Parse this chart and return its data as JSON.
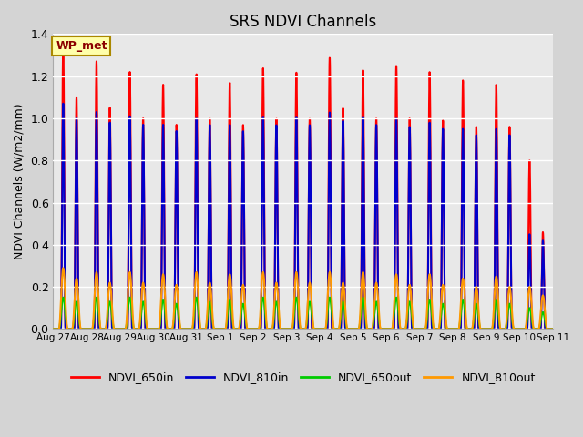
{
  "title": "SRS NDVI Channels",
  "ylabel": "NDVI Channels (W/m2/mm)",
  "ylim": [
    0,
    1.4
  ],
  "fig_facecolor": "#d4d4d4",
  "plot_facecolor": "#e8e8e8",
  "series": [
    "NDVI_650in",
    "NDVI_810in",
    "NDVI_650out",
    "NDVI_810out"
  ],
  "colors": [
    "#ff0000",
    "#0000cc",
    "#00cc00",
    "#ff9900"
  ],
  "linewidths": [
    1.5,
    1.5,
    1.5,
    1.5
  ],
  "legend_label": "WP_met",
  "num_days": 15,
  "tick_labels": [
    "Aug 27",
    "Aug 28",
    "Aug 29",
    "Aug 30",
    "Aug 31",
    "Sep 1",
    "Sep 2",
    "Sep 3",
    "Sep 4",
    "Sep 5",
    "Sep 6",
    "Sep 7",
    "Sep 8",
    "Sep 9",
    "Sep 10",
    "Sep 11"
  ],
  "peaks_per_day": 2,
  "peak_offsets": [
    0.3,
    0.7
  ],
  "hw_in": 0.07,
  "hw_out": 0.13,
  "peak_heights_650in_am": [
    1.35,
    1.27,
    1.22,
    1.16,
    1.21,
    1.17,
    1.24,
    1.22,
    1.29,
    1.23,
    1.25,
    1.22,
    1.18,
    1.16,
    0.8
  ],
  "peak_heights_650in_pm": [
    1.1,
    1.05,
    1.0,
    0.97,
    1.0,
    0.97,
    1.0,
    1.0,
    1.05,
    1.0,
    1.0,
    0.99,
    0.96,
    0.96,
    0.46
  ],
  "peak_heights_810in_am": [
    1.07,
    1.03,
    1.01,
    0.97,
    1.0,
    0.97,
    1.01,
    1.01,
    1.03,
    1.01,
    1.0,
    0.98,
    0.95,
    0.95,
    0.45
  ],
  "peak_heights_810in_pm": [
    1.0,
    0.98,
    0.97,
    0.94,
    0.97,
    0.94,
    0.97,
    0.97,
    0.99,
    0.97,
    0.96,
    0.95,
    0.92,
    0.92,
    0.42
  ],
  "peak_heights_650out_am": [
    0.15,
    0.15,
    0.15,
    0.14,
    0.15,
    0.14,
    0.15,
    0.15,
    0.15,
    0.15,
    0.15,
    0.14,
    0.14,
    0.14,
    0.1
  ],
  "peak_heights_650out_pm": [
    0.13,
    0.13,
    0.13,
    0.12,
    0.13,
    0.12,
    0.13,
    0.13,
    0.13,
    0.13,
    0.13,
    0.12,
    0.12,
    0.12,
    0.08
  ],
  "peak_heights_810out_am": [
    0.29,
    0.27,
    0.27,
    0.26,
    0.27,
    0.26,
    0.27,
    0.27,
    0.27,
    0.27,
    0.26,
    0.26,
    0.24,
    0.25,
    0.2
  ],
  "peak_heights_810out_pm": [
    0.24,
    0.22,
    0.22,
    0.21,
    0.22,
    0.21,
    0.22,
    0.22,
    0.22,
    0.22,
    0.21,
    0.21,
    0.2,
    0.2,
    0.16
  ]
}
